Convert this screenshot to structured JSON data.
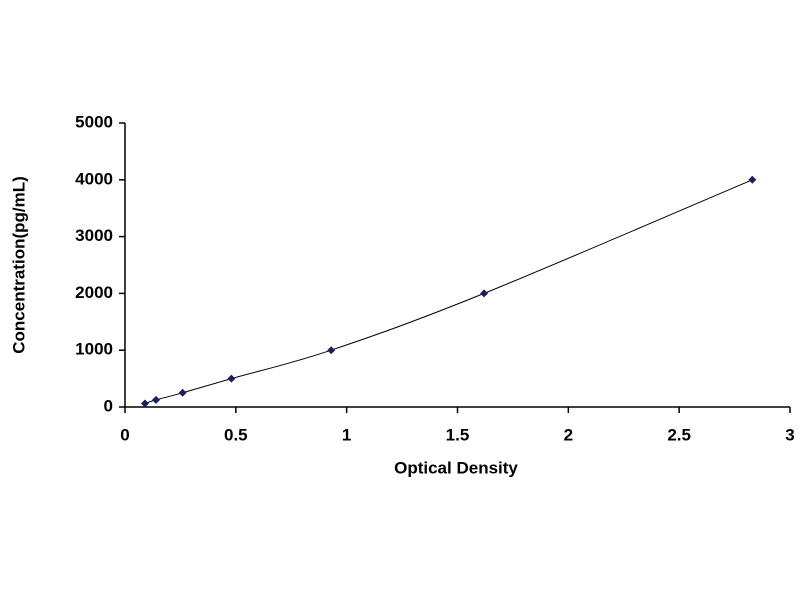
{
  "chart_data": {
    "type": "scatter",
    "x_label": "Optical Density",
    "y_label": "Concentration(pg/mL)",
    "x": [
      0.09,
      0.14,
      0.26,
      0.48,
      0.93,
      1.62,
      2.83
    ],
    "series": [
      {
        "color": "#1c1f5e",
        "values": [
          62.5,
          125,
          250,
          500,
          1000,
          2000,
          4000
        ]
      }
    ],
    "xlim": [
      0,
      3
    ],
    "xticks": [
      0,
      0.5,
      1,
      1.5,
      2,
      2.5,
      3
    ],
    "ylim": [
      0,
      5000
    ],
    "yticks": [
      0,
      1000,
      2000,
      3000,
      4000,
      5000
    ],
    "grid": false,
    "trend_line": true
  }
}
